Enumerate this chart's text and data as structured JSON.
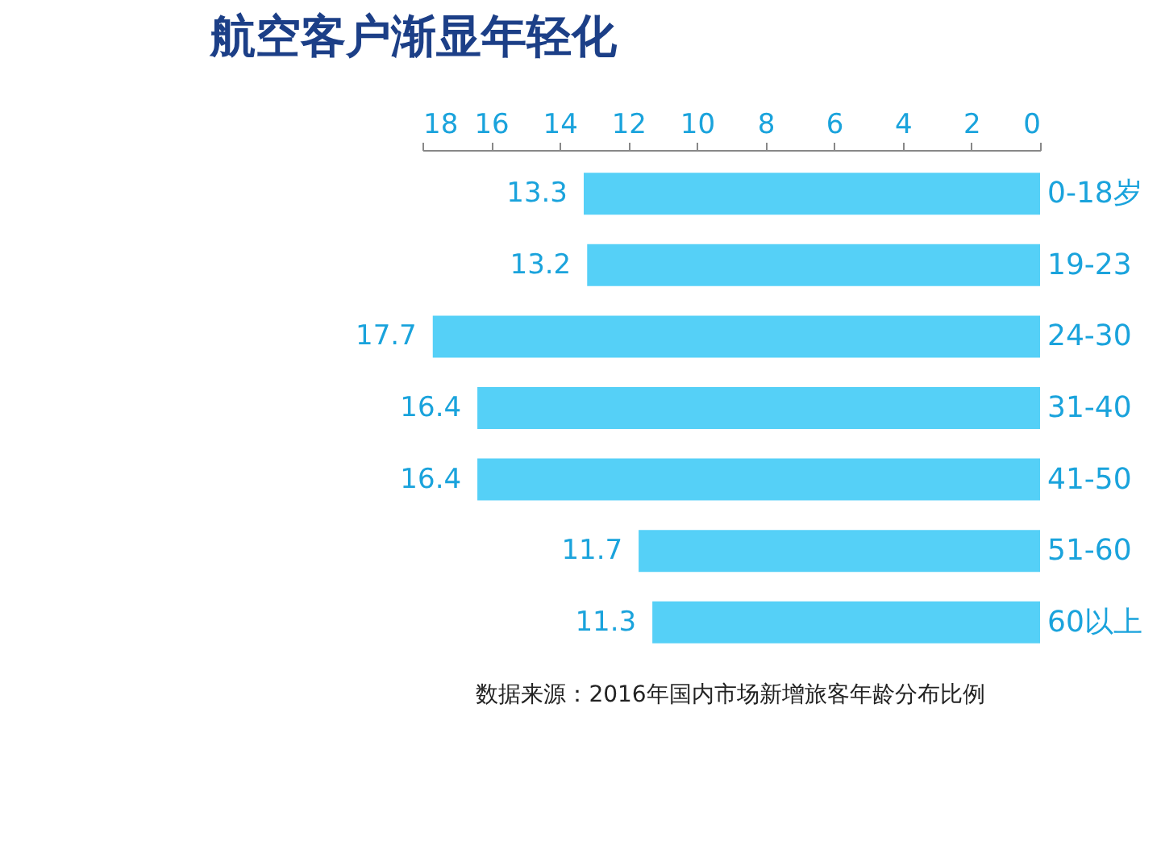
{
  "chart_data": {
    "type": "bar",
    "orientation": "horizontal",
    "title": "航空客户渐显年轻化",
    "categories": [
      "0-18岁",
      "19-23",
      "24-30",
      "31-40",
      "41-50",
      "51-60",
      "60以上"
    ],
    "values": [
      13.3,
      13.2,
      17.7,
      16.4,
      16.4,
      11.7,
      11.3
    ],
    "color": "#55d0f7",
    "data_labels": true,
    "xlim": [
      18,
      0
    ],
    "xticks": [
      18,
      16,
      14,
      12,
      10,
      8,
      6,
      4,
      2,
      0
    ],
    "grid": false,
    "annotations": [
      "数据来源：2016年国内市场新增旅客年龄分布比例"
    ]
  }
}
